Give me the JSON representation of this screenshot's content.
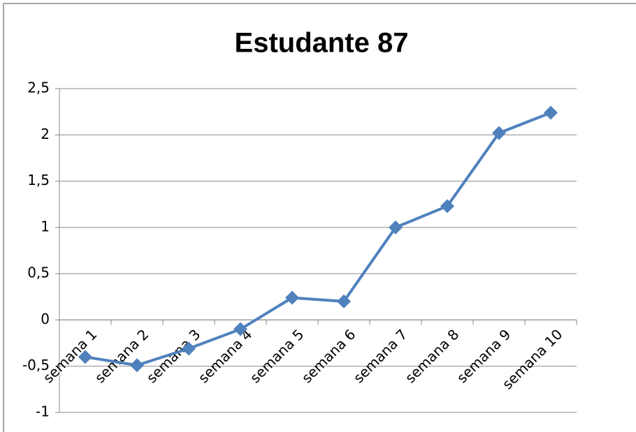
{
  "chart_data": {
    "type": "line",
    "title": "Estudante 87",
    "categories": [
      "semana 1",
      "semana 2",
      "semana 3",
      "semana 4",
      "semana 5",
      "semana 6",
      "semana 7",
      "semana 8",
      "semana 9",
      "semana 10"
    ],
    "values": [
      -0.4,
      -0.49,
      -0.31,
      -0.1,
      0.24,
      0.2,
      1.0,
      1.23,
      2.02,
      2.24
    ],
    "color": "#4f81bd",
    "ylim": [
      -1,
      2.5
    ],
    "yticks": [
      {
        "value": -1,
        "label": "-1"
      },
      {
        "value": -0.5,
        "label": "-0,5"
      },
      0,
      {
        "value": 0.5,
        "label": "0,5"
      },
      1,
      {
        "value": 1.5,
        "label": "1,5"
      },
      2,
      {
        "value": 2.5,
        "label": "2,5"
      }
    ],
    "grid": true
  }
}
